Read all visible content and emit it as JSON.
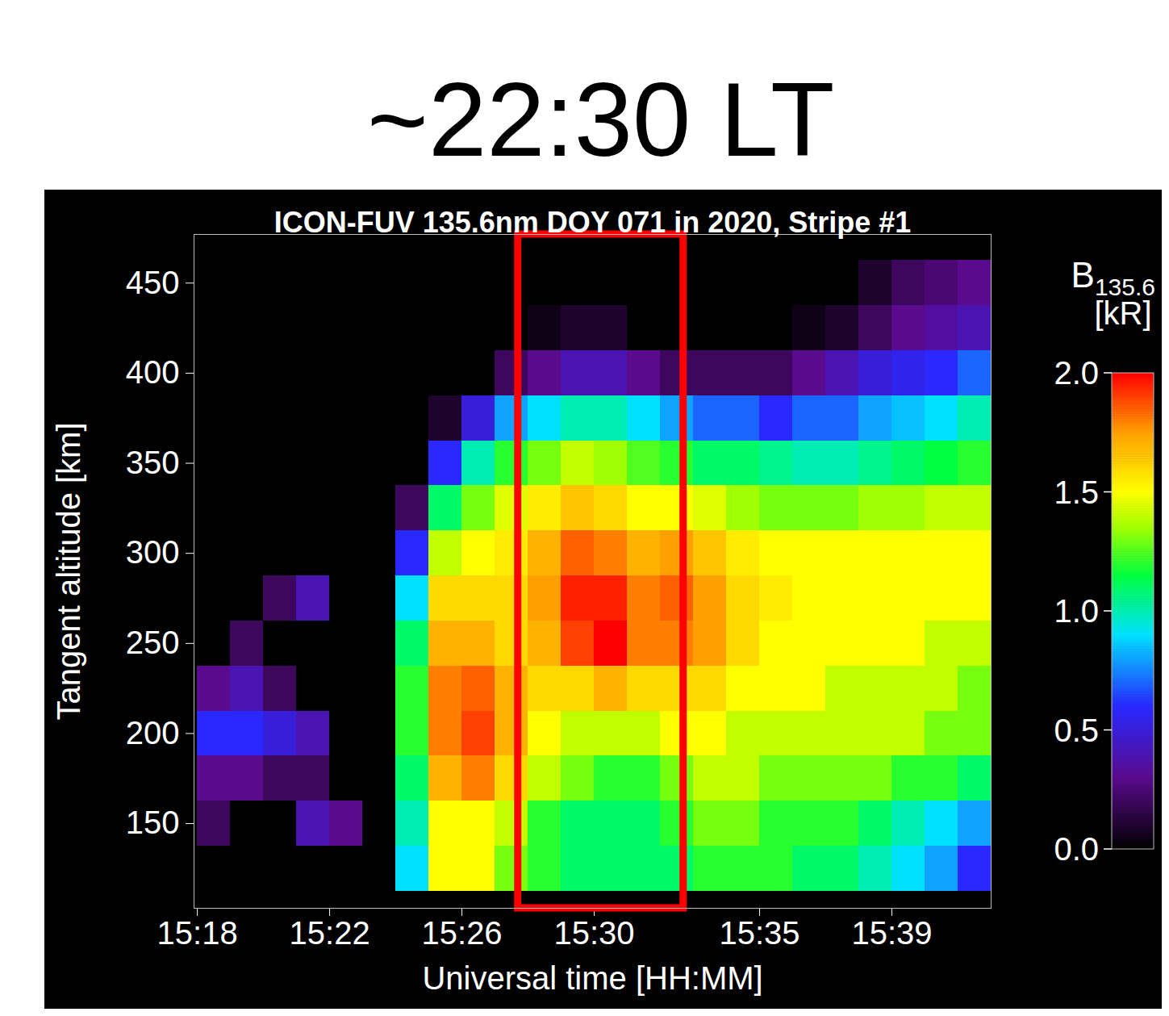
{
  "chart_data": {
    "type": "heatmap",
    "title": "ICON-FUV 135.6nm DOY 071 in 2020, Stripe #1",
    "x_label": "Universal time [HH:MM]",
    "y_label": "Tangent altitude [km]",
    "xlim": [
      17.9,
      42
    ],
    "ylim": [
      103,
      477
    ],
    "xticks": [
      {
        "value": 18,
        "label": "15:18"
      },
      {
        "value": 22,
        "label": "15:22"
      },
      {
        "value": 26,
        "label": "15:26"
      },
      {
        "value": 30,
        "label": "15:30"
      },
      {
        "value": 35,
        "label": "15:35"
      },
      {
        "value": 39,
        "label": "15:39"
      }
    ],
    "yticks": [
      150,
      200,
      250,
      300,
      350,
      400,
      450
    ],
    "x_edges": [
      18,
      19,
      20,
      21,
      22,
      23,
      24,
      25,
      26,
      27,
      28,
      29,
      30,
      31,
      32,
      33,
      34,
      35,
      36,
      37,
      38,
      39,
      40,
      41,
      42
    ],
    "y_edges": [
      112.5,
      137.5,
      162.5,
      187.5,
      212.5,
      237.5,
      262.5,
      287.5,
      312.5,
      337.5,
      362.5,
      387.5,
      412.5,
      437.5,
      462.5
    ],
    "values": [
      [
        0,
        0,
        0,
        0,
        0,
        0,
        0.9,
        1.5,
        1.5,
        1.3,
        1.2,
        1.1,
        1.1,
        1.1,
        1.1,
        1.2,
        1.2,
        1.2,
        1.1,
        1.1,
        1.0,
        0.9,
        0.8,
        0.6
      ],
      [
        0.2,
        0,
        0,
        0.4,
        0.3,
        0,
        1.0,
        1.5,
        1.5,
        1.4,
        1.2,
        1.1,
        1.1,
        1.1,
        1.2,
        1.3,
        1.3,
        1.2,
        1.2,
        1.2,
        1.1,
        1.0,
        0.9,
        0.8
      ],
      [
        0.3,
        0.3,
        0.2,
        0.2,
        0,
        0,
        1.1,
        1.7,
        1.8,
        1.6,
        1.4,
        1.3,
        1.2,
        1.2,
        1.3,
        1.4,
        1.4,
        1.3,
        1.3,
        1.3,
        1.3,
        1.2,
        1.2,
        1.1
      ],
      [
        0.6,
        0.6,
        0.5,
        0.4,
        0,
        0,
        1.2,
        1.8,
        1.9,
        1.7,
        1.5,
        1.4,
        1.4,
        1.4,
        1.5,
        1.5,
        1.4,
        1.4,
        1.4,
        1.4,
        1.4,
        1.4,
        1.3,
        1.3
      ],
      [
        0.3,
        0.4,
        0.2,
        0,
        0,
        0,
        1.2,
        1.8,
        1.85,
        1.7,
        1.6,
        1.6,
        1.7,
        1.6,
        1.6,
        1.6,
        1.5,
        1.5,
        1.5,
        1.4,
        1.4,
        1.4,
        1.4,
        1.3
      ],
      [
        0,
        0.2,
        0,
        0,
        0,
        0,
        1.1,
        1.7,
        1.7,
        1.6,
        1.7,
        1.9,
        2.0,
        1.8,
        1.8,
        1.75,
        1.6,
        1.5,
        1.5,
        1.5,
        1.5,
        1.5,
        1.4,
        1.4
      ],
      [
        0,
        0,
        0.2,
        0.4,
        0,
        0,
        0.9,
        1.6,
        1.6,
        1.6,
        1.75,
        1.95,
        1.95,
        1.8,
        1.85,
        1.75,
        1.6,
        1.55,
        1.5,
        1.5,
        1.5,
        1.5,
        1.5,
        1.5
      ],
      [
        0,
        0,
        0,
        0,
        0,
        0,
        0.6,
        1.4,
        1.5,
        1.55,
        1.7,
        1.85,
        1.8,
        1.7,
        1.75,
        1.65,
        1.55,
        1.5,
        1.5,
        1.5,
        1.5,
        1.5,
        1.5,
        1.5
      ],
      [
        0,
        0,
        0,
        0,
        0,
        0,
        0.2,
        1.1,
        1.3,
        1.45,
        1.55,
        1.65,
        1.6,
        1.5,
        1.5,
        1.45,
        1.35,
        1.3,
        1.3,
        1.3,
        1.35,
        1.35,
        1.4,
        1.4
      ],
      [
        0,
        0,
        0,
        0,
        0,
        0,
        0,
        0.6,
        1.0,
        1.2,
        1.3,
        1.4,
        1.35,
        1.25,
        1.2,
        1.1,
        1.1,
        1.05,
        1.0,
        1.0,
        1.05,
        1.1,
        1.15,
        1.2
      ],
      [
        0,
        0,
        0,
        0,
        0,
        0,
        0,
        0.1,
        0.5,
        0.8,
        0.9,
        1.0,
        1.0,
        0.9,
        0.8,
        0.7,
        0.7,
        0.6,
        0.7,
        0.7,
        0.8,
        0.85,
        0.9,
        1.0
      ],
      [
        0,
        0,
        0,
        0,
        0,
        0,
        0,
        0,
        0,
        0.2,
        0.3,
        0.4,
        0.4,
        0.3,
        0.2,
        0.2,
        0.2,
        0.2,
        0.3,
        0.4,
        0.5,
        0.55,
        0.6,
        0.7
      ],
      [
        0,
        0,
        0,
        0,
        0,
        0,
        0,
        0,
        0,
        0,
        0.05,
        0.1,
        0.1,
        0,
        0,
        0,
        0,
        0,
        0.05,
        0.1,
        0.2,
        0.3,
        0.35,
        0.4
      ],
      [
        0,
        0,
        0,
        0,
        0,
        0,
        0,
        0,
        0,
        0,
        0,
        0,
        0,
        0,
        0,
        0,
        0,
        0,
        0,
        0,
        0.1,
        0.2,
        0.25,
        0.3
      ]
    ],
    "colorbar": {
      "label": {
        "main": "B",
        "subscript": "135.6",
        "unit": "[kR]"
      },
      "range": [
        0,
        2
      ],
      "ticks": [
        {
          "value": 0,
          "label": "0.0"
        },
        {
          "value": 0.5,
          "label": "0.5"
        },
        {
          "value": 1,
          "label": "1.0"
        },
        {
          "value": 1.5,
          "label": "1.5"
        },
        {
          "value": 2,
          "label": "2.0"
        }
      ]
    },
    "annotations": [
      {
        "text": "~22:30 LT",
        "x1": 27.7,
        "x2": 32.7,
        "color": "red"
      }
    ]
  }
}
